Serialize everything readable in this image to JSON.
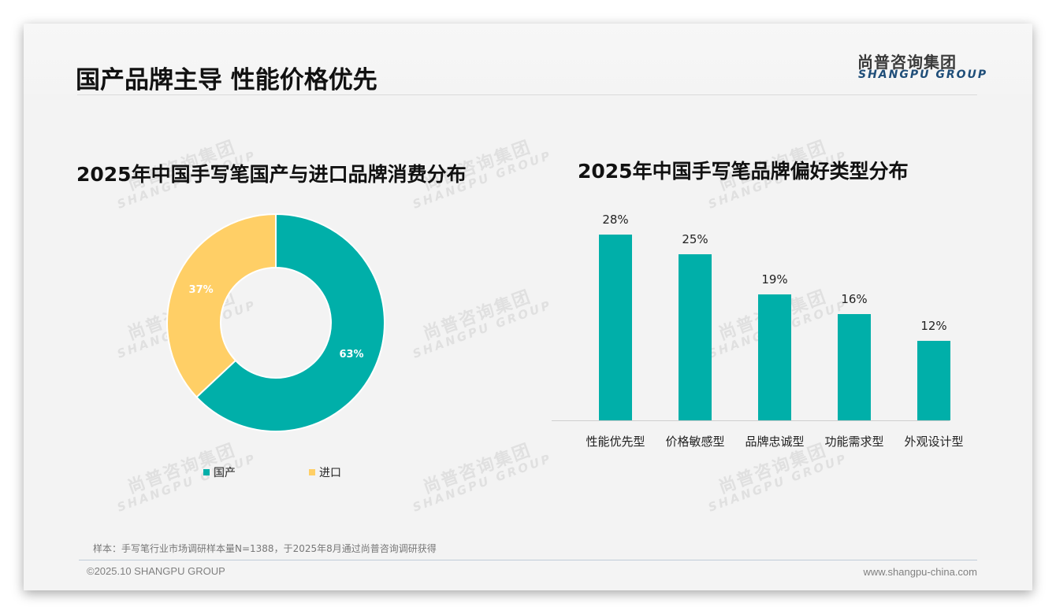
{
  "header": {
    "title": "国产品牌主导 性能价格优先",
    "logo_cn": "尚普咨询集团",
    "logo_en": "SHANGPU GROUP"
  },
  "watermark": {
    "cn": "尚普咨询集团",
    "en": "SHANGPU GROUP"
  },
  "colors": {
    "teal": "#00AFA9",
    "yellow": "#FFCF66",
    "logo_blue": "#1F4E79"
  },
  "chart_data": [
    {
      "type": "pie",
      "variant": "donut",
      "title": "2025年中国手写笔国产与进口品牌消费分布",
      "categories": [
        "国产",
        "进口"
      ],
      "values": [
        63,
        37
      ],
      "labels": [
        "63%",
        "37%"
      ],
      "colors": [
        "#00AFA9",
        "#FFCF66"
      ],
      "legend_position": "bottom"
    },
    {
      "type": "bar",
      "title": "2025年中国手写笔品牌偏好类型分布",
      "categories": [
        "性能优先型",
        "价格敏感型",
        "品牌忠诚型",
        "功能需求型",
        "外观设计型"
      ],
      "values": [
        28,
        25,
        19,
        16,
        12
      ],
      "labels": [
        "28%",
        "25%",
        "19%",
        "16%",
        "12%"
      ],
      "unit": "%",
      "xlabel": "",
      "ylabel": "",
      "grid": false,
      "color": "#00AFA9"
    }
  ],
  "left_chart": {
    "title": "2025年中国手写笔国产与进口品牌消费分布",
    "slices": [
      {
        "label": "国产",
        "value": 63,
        "text": "63%"
      },
      {
        "label": "进口",
        "value": 37,
        "text": "37%"
      }
    ]
  },
  "right_chart": {
    "title": "2025年中国手写笔品牌偏好类型分布",
    "bars": [
      {
        "label": "性能优先型",
        "value": 28,
        "text": "28%"
      },
      {
        "label": "价格敏感型",
        "value": 25,
        "text": "25%"
      },
      {
        "label": "品牌忠诚型",
        "value": 19,
        "text": "19%"
      },
      {
        "label": "功能需求型",
        "value": 16,
        "text": "16%"
      },
      {
        "label": "外观设计型",
        "value": 12,
        "text": "12%"
      }
    ]
  },
  "footer": {
    "note": "样本：手写笔行业市场调研样本量N=1388，于2025年8月通过尚普咨询调研获得",
    "copyright": "©2025.10 SHANGPU GROUP",
    "url": "www.shangpu-china.com"
  }
}
